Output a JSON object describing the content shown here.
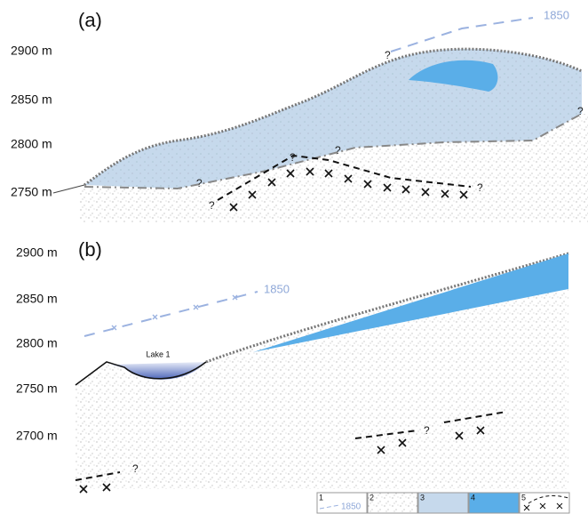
{
  "panels": [
    {
      "label": "(a)",
      "elevations": [
        "2900 m",
        "2850 m",
        "2800 m",
        "2750 m"
      ],
      "line_1850": "1850",
      "question_marks": [
        "?",
        "?",
        "?",
        "?",
        "?",
        "?",
        "?"
      ]
    },
    {
      "label": "(b)",
      "elevations": [
        "2900 m",
        "2850 m",
        "2800 m",
        "2750 m",
        "2700 m"
      ],
      "line_1850": "1850",
      "lake": "Lake 1",
      "question_marks": [
        "?",
        "?"
      ]
    }
  ],
  "legend": [
    {
      "number": "1",
      "label": "1850"
    },
    {
      "number": "2"
    },
    {
      "number": "3"
    },
    {
      "number": "4"
    },
    {
      "number": "5"
    }
  ]
}
